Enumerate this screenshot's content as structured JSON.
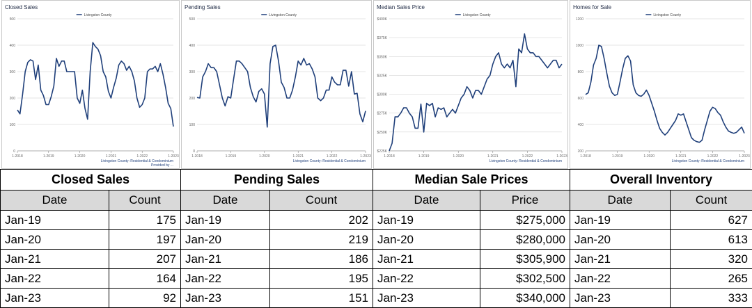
{
  "charts": [
    {
      "title": "Closed Sales",
      "legend": "Livingston County",
      "yticks": [
        "0",
        "100",
        "200",
        "300",
        "400",
        "500"
      ],
      "ymin": 0,
      "ymax": 500,
      "xticks": [
        "1-2018",
        "1-2019",
        "1-2020",
        "1-2021",
        "1-2022",
        "1-2023"
      ],
      "footer": [
        "Livingston County: Residential & Condominium",
        "Provided by ..."
      ]
    },
    {
      "title": "Pending Sales",
      "legend": "Livingston County",
      "yticks": [
        "0",
        "100",
        "200",
        "300",
        "400",
        "500"
      ],
      "ymin": 0,
      "ymax": 500,
      "xticks": [
        "1-2018",
        "1-2019",
        "1-2020",
        "1-2021",
        "1-2022",
        "1-2023"
      ],
      "footer": [
        "Livingston County: Residential & Condominium"
      ]
    },
    {
      "title": "Median Sales Price",
      "legend": "Livingston County",
      "yticks": [
        "$225K",
        "$250K",
        "$275K",
        "$300K",
        "$325K",
        "$350K",
        "$375K",
        "$400K"
      ],
      "ymin": 225000,
      "ymax": 400000,
      "xticks": [
        "1-2018",
        "1-2019",
        "1-2020",
        "1-2021",
        "1-2022",
        "1-2023"
      ],
      "footer": [
        "Livingston County: Residential & Condominium"
      ]
    },
    {
      "title": "Homes for Sale",
      "legend": "Livingston County",
      "yticks": [
        "200",
        "400",
        "600",
        "800",
        "1000",
        "1200"
      ],
      "ymin": 200,
      "ymax": 1200,
      "xticks": [
        "1-2018",
        "1-2019",
        "1-2020",
        "1-2021",
        "1-2022",
        "1-2023"
      ],
      "footer": [
        "Livingston County: Residential & Condominium"
      ]
    }
  ],
  "chart_data": [
    {
      "type": "line",
      "title": "Closed Sales",
      "series": [
        {
          "name": "Livingston County",
          "values": [
            155,
            140,
            215,
            300,
            335,
            345,
            340,
            270,
            325,
            230,
            210,
            175,
            175,
            205,
            245,
            350,
            320,
            340,
            340,
            300,
            300,
            300,
            300,
            200,
            180,
            230,
            160,
            120,
            300,
            410,
            395,
            385,
            360,
            300,
            280,
            225,
            200,
            240,
            275,
            325,
            340,
            330,
            305,
            320,
            300,
            265,
            200,
            165,
            175,
            200,
            300,
            310,
            310,
            320,
            300,
            330,
            290,
            240,
            180,
            160,
            92
          ]
        }
      ],
      "ylim": [
        0,
        500
      ]
    },
    {
      "type": "line",
      "title": "Pending Sales",
      "series": [
        {
          "name": "Livingston County",
          "values": [
            202,
            200,
            280,
            300,
            330,
            315,
            315,
            300,
            250,
            200,
            170,
            205,
            200,
            270,
            340,
            340,
            330,
            315,
            300,
            240,
            205,
            185,
            225,
            235,
            215,
            90,
            330,
            395,
            400,
            340,
            260,
            240,
            200,
            200,
            230,
            280,
            340,
            325,
            350,
            325,
            330,
            310,
            280,
            200,
            190,
            200,
            230,
            230,
            280,
            260,
            250,
            250,
            305,
            305,
            245,
            300,
            215,
            218,
            140,
            110,
            151
          ]
        }
      ],
      "ylim": [
        0,
        500
      ]
    },
    {
      "type": "line",
      "title": "Median Sales Price",
      "series": [
        {
          "name": "Livingston County",
          "values": [
            225000,
            235000,
            270000,
            270000,
            275000,
            282000,
            282000,
            275000,
            270000,
            255000,
            255000,
            287000,
            250000,
            288000,
            285000,
            288000,
            270000,
            282000,
            280000,
            282000,
            270000,
            275000,
            280000,
            275000,
            285000,
            295000,
            300000,
            310000,
            305000,
            295000,
            305000,
            305000,
            300000,
            310000,
            320000,
            325000,
            340000,
            350000,
            355000,
            340000,
            335000,
            340000,
            335000,
            345000,
            310000,
            360000,
            355000,
            380000,
            360000,
            355000,
            355000,
            350000,
            350000,
            345000,
            340000,
            335000,
            340000,
            345000,
            345000,
            335000,
            340000
          ]
        }
      ],
      "ylim": [
        225000,
        400000
      ]
    },
    {
      "type": "line",
      "title": "Homes for Sale",
      "series": [
        {
          "name": "Livingston County",
          "values": [
            627,
            640,
            720,
            850,
            900,
            1000,
            990,
            900,
            790,
            690,
            640,
            620,
            627,
            720,
            820,
            900,
            920,
            880,
            700,
            640,
            620,
            613,
            630,
            660,
            620,
            560,
            500,
            430,
            370,
            340,
            320,
            340,
            370,
            400,
            430,
            480,
            470,
            480,
            420,
            360,
            300,
            280,
            270,
            265,
            280,
            360,
            430,
            500,
            530,
            520,
            490,
            470,
            420,
            380,
            350,
            340,
            333,
            340,
            360,
            380,
            333
          ]
        }
      ],
      "ylim": [
        200,
        1200
      ]
    }
  ],
  "table": {
    "sections": [
      {
        "title": "Closed Sales",
        "headers": [
          "Date",
          "Count"
        ],
        "rows": [
          [
            "Jan-19",
            "175"
          ],
          [
            "Jan-20",
            "197"
          ],
          [
            "Jan-21",
            "207"
          ],
          [
            "Jan-22",
            "164"
          ],
          [
            "Jan-23",
            "92"
          ]
        ]
      },
      {
        "title": "Pending Sales",
        "headers": [
          "Date",
          "Count"
        ],
        "rows": [
          [
            "Jan-19",
            "202"
          ],
          [
            "Jan-20",
            "219"
          ],
          [
            "Jan-21",
            "186"
          ],
          [
            "Jan-22",
            "195"
          ],
          [
            "Jan-23",
            "151"
          ]
        ]
      },
      {
        "title": "Median Sale Prices",
        "headers": [
          "Date",
          "Price"
        ],
        "rows": [
          [
            "Jan-19",
            "$275,000"
          ],
          [
            "Jan-20",
            "$280,000"
          ],
          [
            "Jan-21",
            "$305,900"
          ],
          [
            "Jan-22",
            "$302,500"
          ],
          [
            "Jan-23",
            "$340,000"
          ]
        ]
      },
      {
        "title": "Overall Inventory",
        "headers": [
          "Date",
          "Count"
        ],
        "rows": [
          [
            "Jan-19",
            "627"
          ],
          [
            "Jan-20",
            "613"
          ],
          [
            "Jan-21",
            "320"
          ],
          [
            "Jan-22",
            "265"
          ],
          [
            "Jan-23",
            "333"
          ]
        ]
      }
    ]
  },
  "colors": {
    "line": "#1f3f7a",
    "header_bg": "#d9d9d9",
    "grid": "#bfbfbf"
  }
}
